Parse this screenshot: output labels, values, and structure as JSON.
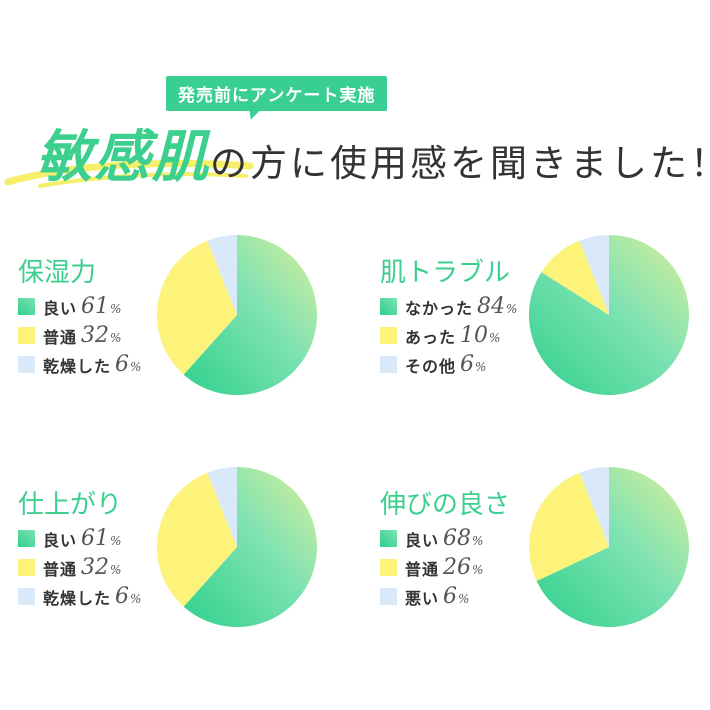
{
  "header": {
    "tag": "発売前にアンケート実施",
    "emphasis": "敏感肌",
    "rest": "の方に使用感を聞きました！"
  },
  "colors": {
    "green_light": "#7ee2b3",
    "green_dark": "#2fd08c",
    "green_edge": "#d9ef9a",
    "yellow": "#fdf37a",
    "blue": "#d9e9f9",
    "title_green": "#3ccf8e"
  },
  "chart_data": [
    {
      "type": "pie",
      "title": "保湿力",
      "unit": "%",
      "slices": [
        {
          "label": "良い",
          "value": 61,
          "color": "green"
        },
        {
          "label": "普通",
          "value": 32,
          "color": "yellow"
        },
        {
          "label": "乾燥した",
          "value": 6,
          "color": "blue"
        }
      ]
    },
    {
      "type": "pie",
      "title": "肌トラブル",
      "unit": "%",
      "slices": [
        {
          "label": "なかった",
          "value": 84,
          "color": "green"
        },
        {
          "label": "あった",
          "value": 10,
          "color": "yellow"
        },
        {
          "label": "その他",
          "value": 6,
          "color": "blue"
        }
      ]
    },
    {
      "type": "pie",
      "title": "仕上がり",
      "unit": "%",
      "slices": [
        {
          "label": "良い",
          "value": 61,
          "color": "green"
        },
        {
          "label": "普通",
          "value": 32,
          "color": "yellow"
        },
        {
          "label": "乾燥した",
          "value": 6,
          "color": "blue"
        }
      ]
    },
    {
      "type": "pie",
      "title": "伸びの良さ",
      "unit": "%",
      "slices": [
        {
          "label": "良い",
          "value": 68,
          "color": "green"
        },
        {
          "label": "普通",
          "value": 26,
          "color": "yellow"
        },
        {
          "label": "悪い",
          "value": 6,
          "color": "blue"
        }
      ]
    }
  ]
}
